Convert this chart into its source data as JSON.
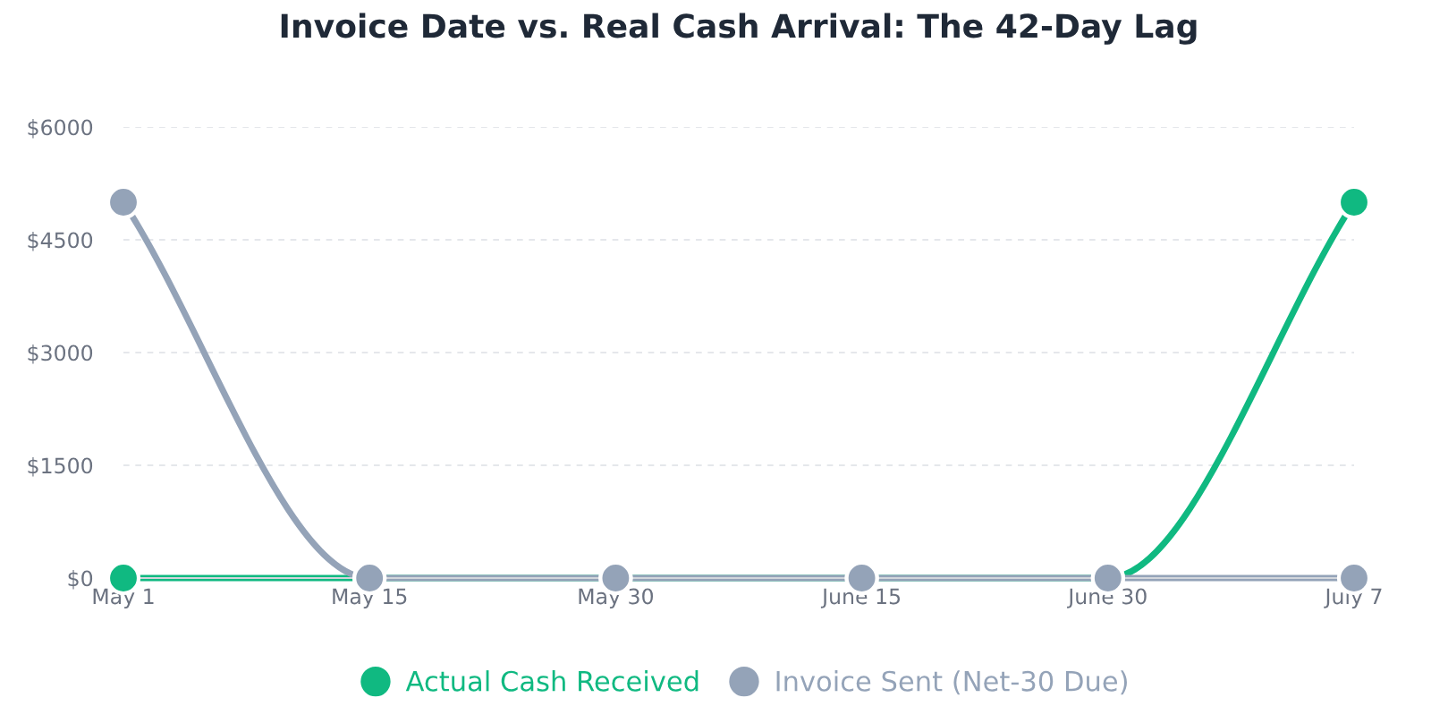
{
  "chart_data": {
    "type": "line",
    "title": "Invoice Date vs. Real Cash Arrival: The 42-Day Lag",
    "categories": [
      "May 1",
      "May 15",
      "May 30",
      "June 15",
      "June 30",
      "July 7"
    ],
    "series": [
      {
        "name": "Actual Cash Received",
        "color": "#10b981",
        "values": [
          0,
          0,
          0,
          0,
          0,
          5000
        ]
      },
      {
        "name": "Invoice Sent (Net-30 Due)",
        "color": "#94a3b8",
        "values": [
          5000,
          0,
          0,
          0,
          0,
          0
        ]
      }
    ],
    "ylim": [
      0,
      6000
    ],
    "yticks": [
      {
        "value": 0,
        "label": "$0"
      },
      {
        "value": 1500,
        "label": "$1500"
      },
      {
        "value": 3000,
        "label": "$3000"
      },
      {
        "value": 4500,
        "label": "$4500"
      },
      {
        "value": 6000,
        "label": "$6000"
      }
    ],
    "grid": "y",
    "legend": "bottom",
    "marker": "circle",
    "line_style": "solid"
  }
}
